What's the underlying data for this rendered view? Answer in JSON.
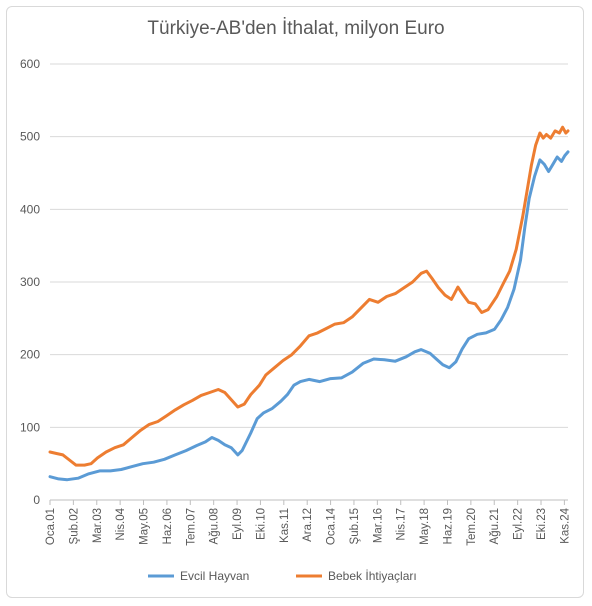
{
  "chart_data": {
    "type": "line",
    "title": "Türkiye-AB'den İthalat, milyon Euro",
    "ylim": [
      0,
      600
    ],
    "yticks": [
      0,
      100,
      200,
      300,
      400,
      500,
      600
    ],
    "grid": true,
    "legend_position": "bottom",
    "x_range": [
      2001.0,
      2025.0
    ],
    "xtick_labels": [
      "Oca.01",
      "Şub.02",
      "Mar.03",
      "Nis.04",
      "May.05",
      "Haz.06",
      "Tem.07",
      "Ağu.08",
      "Eyl.09",
      "Eki.10",
      "Kas.11",
      "Ara.12",
      "Oca.14",
      "Şub.15",
      "Mar.16",
      "Nis.17",
      "May.18",
      "Haz.19",
      "Tem.20",
      "Ağu.21",
      "Eyl.22",
      "Eki.23",
      "Kas.24"
    ],
    "xtick_positions": [
      2001.0,
      2002.083,
      2003.167,
      2004.25,
      2005.333,
      2006.417,
      2007.5,
      2008.583,
      2009.667,
      2010.75,
      2011.833,
      2012.917,
      2014.0,
      2015.083,
      2016.167,
      2017.25,
      2018.333,
      2019.417,
      2020.5,
      2021.583,
      2022.667,
      2023.75,
      2024.833
    ],
    "series": [
      {
        "name": "Evcil Hayvan",
        "color": "#5b9bd5",
        "points": [
          [
            2001.0,
            32
          ],
          [
            2001.4,
            29
          ],
          [
            2001.8,
            28
          ],
          [
            2002.3,
            30
          ],
          [
            2002.8,
            36
          ],
          [
            2003.3,
            40
          ],
          [
            2003.8,
            40
          ],
          [
            2004.3,
            42
          ],
          [
            2004.8,
            46
          ],
          [
            2005.3,
            50
          ],
          [
            2005.8,
            52
          ],
          [
            2006.3,
            56
          ],
          [
            2006.8,
            62
          ],
          [
            2007.3,
            68
          ],
          [
            2007.8,
            75
          ],
          [
            2008.2,
            80
          ],
          [
            2008.5,
            86
          ],
          [
            2008.8,
            82
          ],
          [
            2009.1,
            76
          ],
          [
            2009.4,
            72
          ],
          [
            2009.7,
            62
          ],
          [
            2009.9,
            68
          ],
          [
            2010.3,
            92
          ],
          [
            2010.6,
            112
          ],
          [
            2010.9,
            120
          ],
          [
            2011.3,
            126
          ],
          [
            2011.7,
            136
          ],
          [
            2012.0,
            145
          ],
          [
            2012.3,
            158
          ],
          [
            2012.6,
            163
          ],
          [
            2013.0,
            166
          ],
          [
            2013.5,
            163
          ],
          [
            2014.0,
            167
          ],
          [
            2014.5,
            168
          ],
          [
            2015.0,
            176
          ],
          [
            2015.5,
            188
          ],
          [
            2016.0,
            194
          ],
          [
            2016.5,
            193
          ],
          [
            2017.0,
            191
          ],
          [
            2017.5,
            197
          ],
          [
            2017.9,
            204
          ],
          [
            2018.2,
            207
          ],
          [
            2018.6,
            202
          ],
          [
            2018.9,
            194
          ],
          [
            2019.2,
            186
          ],
          [
            2019.5,
            182
          ],
          [
            2019.8,
            190
          ],
          [
            2020.1,
            208
          ],
          [
            2020.4,
            222
          ],
          [
            2020.8,
            228
          ],
          [
            2021.2,
            230
          ],
          [
            2021.6,
            235
          ],
          [
            2021.9,
            248
          ],
          [
            2022.2,
            265
          ],
          [
            2022.5,
            290
          ],
          [
            2022.8,
            330
          ],
          [
            2023.0,
            375
          ],
          [
            2023.2,
            415
          ],
          [
            2023.45,
            445
          ],
          [
            2023.7,
            468
          ],
          [
            2023.9,
            462
          ],
          [
            2024.1,
            452
          ],
          [
            2024.3,
            462
          ],
          [
            2024.5,
            472
          ],
          [
            2024.7,
            466
          ],
          [
            2024.85,
            474
          ],
          [
            2025.0,
            479
          ]
        ]
      },
      {
        "name": "Bebek İhtiyaçları",
        "color": "#ed7d31",
        "points": [
          [
            2001.0,
            66
          ],
          [
            2001.3,
            64
          ],
          [
            2001.6,
            62
          ],
          [
            2001.9,
            55
          ],
          [
            2002.2,
            48
          ],
          [
            2002.6,
            48
          ],
          [
            2002.9,
            50
          ],
          [
            2003.2,
            58
          ],
          [
            2003.6,
            66
          ],
          [
            2004.0,
            72
          ],
          [
            2004.4,
            76
          ],
          [
            2004.8,
            86
          ],
          [
            2005.2,
            96
          ],
          [
            2005.6,
            104
          ],
          [
            2006.0,
            108
          ],
          [
            2006.4,
            116
          ],
          [
            2006.8,
            124
          ],
          [
            2007.2,
            131
          ],
          [
            2007.6,
            137
          ],
          [
            2008.0,
            144
          ],
          [
            2008.4,
            148
          ],
          [
            2008.8,
            152
          ],
          [
            2009.1,
            148
          ],
          [
            2009.4,
            138
          ],
          [
            2009.7,
            128
          ],
          [
            2010.0,
            132
          ],
          [
            2010.3,
            145
          ],
          [
            2010.7,
            158
          ],
          [
            2011.0,
            172
          ],
          [
            2011.4,
            182
          ],
          [
            2011.8,
            192
          ],
          [
            2012.2,
            200
          ],
          [
            2012.6,
            212
          ],
          [
            2013.0,
            226
          ],
          [
            2013.4,
            230
          ],
          [
            2013.8,
            236
          ],
          [
            2014.2,
            242
          ],
          [
            2014.6,
            244
          ],
          [
            2015.0,
            252
          ],
          [
            2015.4,
            264
          ],
          [
            2015.8,
            276
          ],
          [
            2016.2,
            272
          ],
          [
            2016.6,
            280
          ],
          [
            2017.0,
            284
          ],
          [
            2017.4,
            292
          ],
          [
            2017.8,
            300
          ],
          [
            2018.2,
            312
          ],
          [
            2018.45,
            315
          ],
          [
            2018.7,
            305
          ],
          [
            2019.0,
            292
          ],
          [
            2019.3,
            282
          ],
          [
            2019.6,
            276
          ],
          [
            2019.9,
            293
          ],
          [
            2020.1,
            284
          ],
          [
            2020.4,
            272
          ],
          [
            2020.7,
            270
          ],
          [
            2021.0,
            258
          ],
          [
            2021.3,
            262
          ],
          [
            2021.7,
            280
          ],
          [
            2022.0,
            298
          ],
          [
            2022.3,
            315
          ],
          [
            2022.6,
            345
          ],
          [
            2022.9,
            390
          ],
          [
            2023.1,
            425
          ],
          [
            2023.3,
            460
          ],
          [
            2023.5,
            488
          ],
          [
            2023.7,
            505
          ],
          [
            2023.85,
            498
          ],
          [
            2024.0,
            503
          ],
          [
            2024.2,
            498
          ],
          [
            2024.4,
            508
          ],
          [
            2024.6,
            505
          ],
          [
            2024.75,
            513
          ],
          [
            2024.9,
            505
          ],
          [
            2025.0,
            508
          ]
        ]
      }
    ]
  }
}
